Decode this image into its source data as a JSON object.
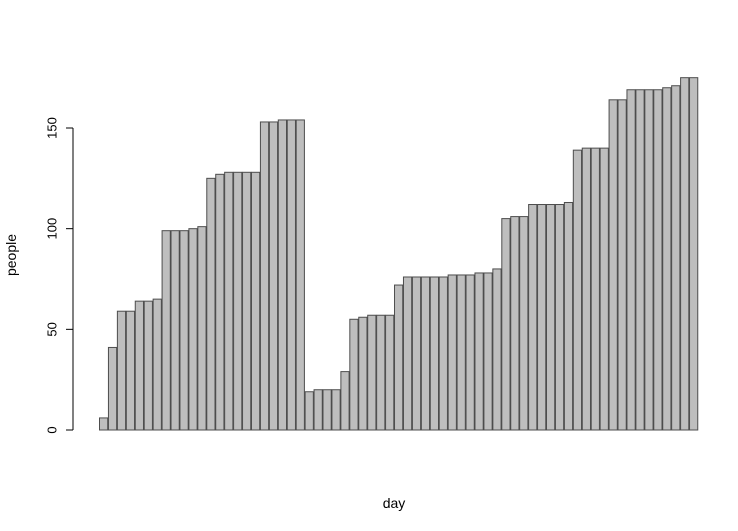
{
  "chart_data": {
    "type": "bar",
    "title": "",
    "xlabel": "day",
    "ylabel": "people",
    "ylim": [
      0,
      180
    ],
    "yticks": [
      0,
      50,
      100,
      150
    ],
    "grid": false,
    "legend": "none",
    "bar_fill": "#bebebe",
    "bar_stroke": "#4d4d4d",
    "values": [
      6,
      41,
      59,
      59,
      64,
      64,
      65,
      99,
      99,
      99,
      100,
      101,
      125,
      127,
      128,
      128,
      128,
      128,
      153,
      153,
      154,
      154,
      154,
      19,
      20,
      20,
      20,
      29,
      55,
      56,
      57,
      57,
      57,
      72,
      76,
      76,
      76,
      76,
      76,
      77,
      77,
      77,
      78,
      78,
      80,
      105,
      106,
      106,
      112,
      112,
      112,
      112,
      113,
      139,
      140,
      140,
      140,
      164,
      164,
      169,
      169,
      169,
      169,
      170,
      171,
      175,
      175
    ]
  }
}
